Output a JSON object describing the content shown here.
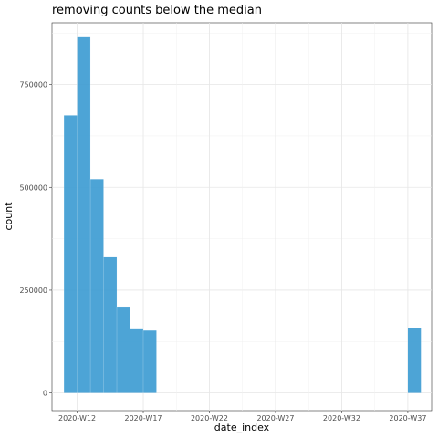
{
  "chart_data": {
    "type": "bar",
    "title": "removing counts below the median",
    "xlabel": "date_index",
    "ylabel": "count",
    "x_tick_labels": [
      "2020-W12",
      "2020-W17",
      "2020-W22",
      "2020-W27",
      "2020-W32",
      "2020-W37"
    ],
    "x_tick_weeks": [
      12,
      17,
      22,
      27,
      32,
      37
    ],
    "y_tick_labels": [
      "0",
      "250000",
      "500000",
      "750000"
    ],
    "y_tick_values": [
      0,
      250000,
      500000,
      750000
    ],
    "xlim": [
      10.1,
      38.8
    ],
    "ylim": [
      -43000,
      900000
    ],
    "bar_width_weeks": 1,
    "bars": [
      {
        "week": 11.5,
        "value": 675000
      },
      {
        "week": 12.5,
        "value": 865000
      },
      {
        "week": 13.5,
        "value": 520000
      },
      {
        "week": 14.5,
        "value": 330000
      },
      {
        "week": 15.5,
        "value": 210000
      },
      {
        "week": 16.5,
        "value": 155000
      },
      {
        "week": 17.5,
        "value": 152000
      },
      {
        "week": 37.5,
        "value": 157000
      }
    ],
    "bar_color": "#3a9ad2",
    "grid": true,
    "legend": "none"
  }
}
